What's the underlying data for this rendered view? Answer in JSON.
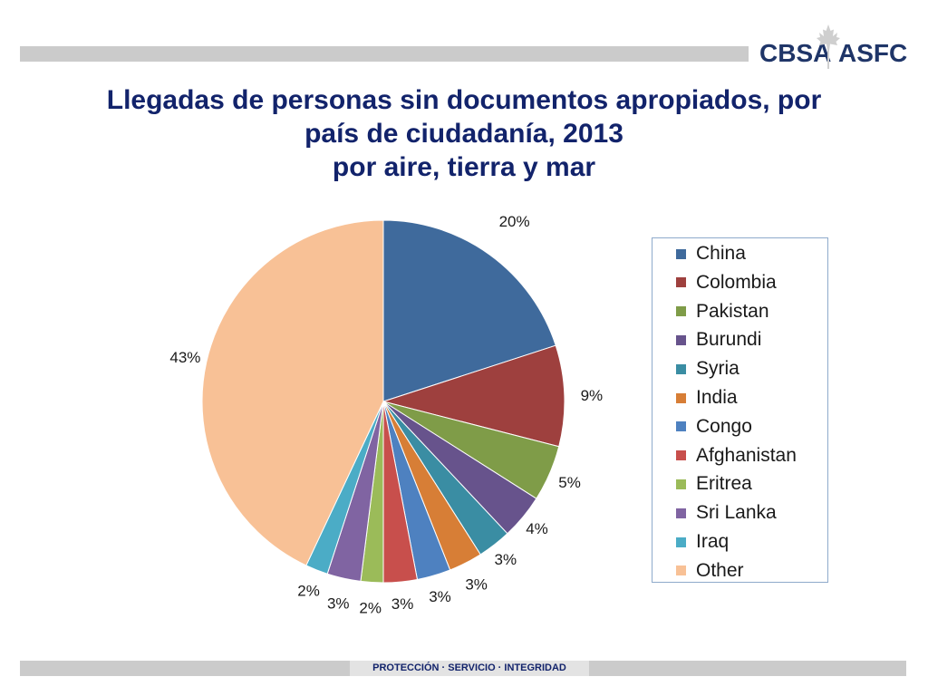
{
  "logo": {
    "left_text": "CBSA",
    "right_text": "ASFC"
  },
  "title": {
    "line1": "Llegadas de personas sin documentos apropiados, por",
    "line2": "país de ciudadanía, 2013",
    "line3": "por aire, tierra y mar"
  },
  "chart_data": {
    "type": "pie",
    "title": "Llegadas de personas sin documentos apropiados, por país de ciudadanía, 2013 por aire, tierra y mar",
    "slices": [
      {
        "name": "China",
        "value": 20,
        "label": "20%",
        "color": "#3f6a9c"
      },
      {
        "name": "Colombia",
        "value": 9,
        "label": "9%",
        "color": "#9e403e"
      },
      {
        "name": "Pakistan",
        "value": 5,
        "label": "5%",
        "color": "#7f9c48"
      },
      {
        "name": "Burundi",
        "value": 4,
        "label": "4%",
        "color": "#67538c"
      },
      {
        "name": "Syria",
        "value": 3,
        "label": "3%",
        "color": "#3a8da3"
      },
      {
        "name": "India",
        "value": 3,
        "label": "3%",
        "color": "#d77e36"
      },
      {
        "name": "Congo",
        "value": 3,
        "label": "3%",
        "color": "#4e81c0"
      },
      {
        "name": "Afghanistan",
        "value": 3,
        "label": "3%",
        "color": "#c84f4c"
      },
      {
        "name": "Eritrea",
        "value": 2,
        "label": "2%",
        "color": "#9bbb59"
      },
      {
        "name": "Sri Lanka",
        "value": 3,
        "label": "3%",
        "color": "#8064a2"
      },
      {
        "name": "Iraq",
        "value": 2,
        "label": "2%",
        "color": "#4bacc6"
      },
      {
        "name": "Other",
        "value": 43,
        "label": "43%",
        "color": "#f8c196"
      }
    ],
    "legend_position": "right"
  },
  "footer": {
    "text": "PROTECCIÓN · SERVICIO · INTEGRIDAD"
  }
}
